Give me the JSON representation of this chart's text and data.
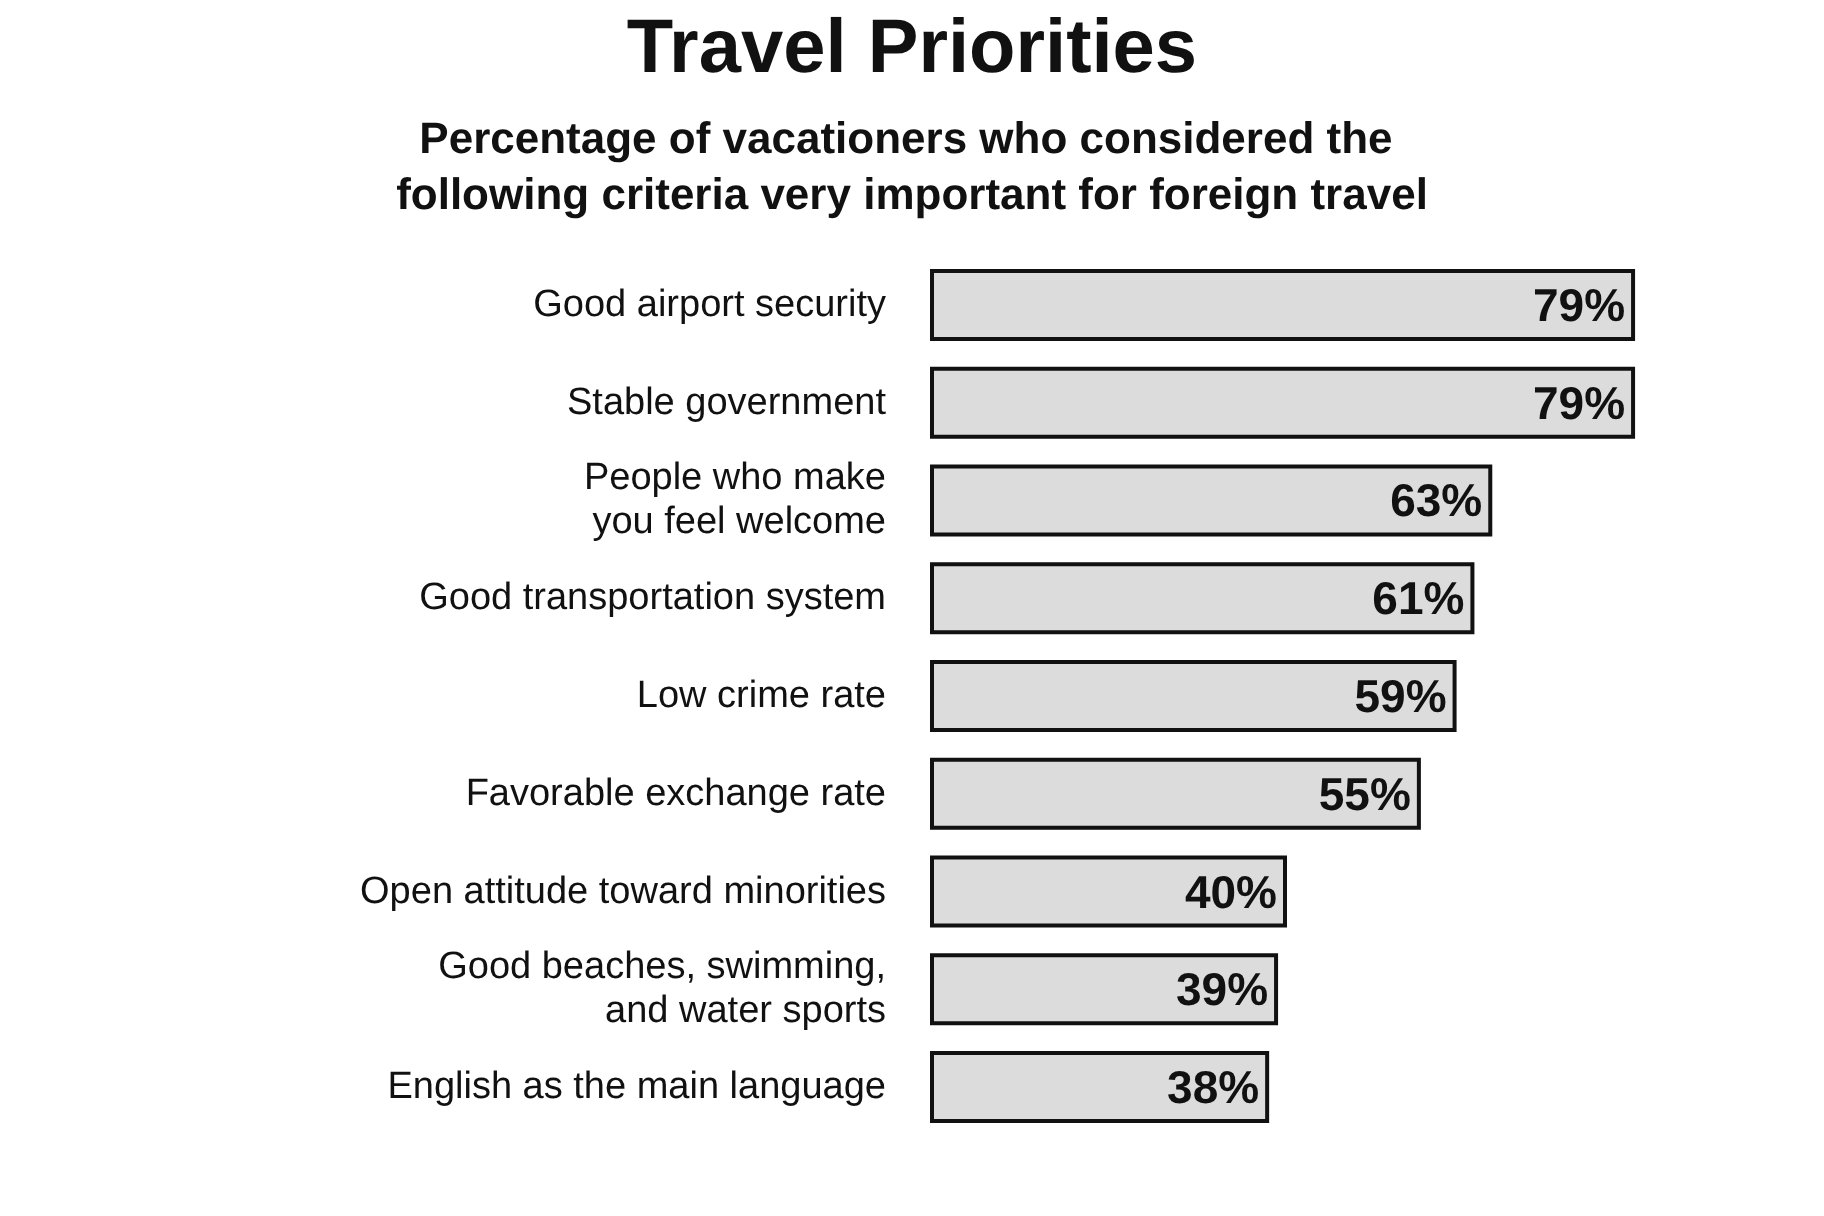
{
  "chart_data": {
    "type": "bar",
    "orientation": "horizontal",
    "title": "Travel Priorities",
    "subtitle": "Percentage of vacationers who considered the following criteria very important for foreign travel",
    "categories": [
      "Good airport security",
      "Stable government",
      "People who make\nyou feel welcome",
      "Good transportation system",
      "Low crime rate",
      "Favorable exchange rate",
      "Open attitude toward minorities",
      "Good beaches, swimming,\nand water sports",
      "English as the main language"
    ],
    "values": [
      79,
      79,
      63,
      61,
      59,
      55,
      40,
      39,
      38
    ],
    "value_labels": [
      "79%",
      "79%",
      "63%",
      "61%",
      "59%",
      "55%",
      "40%",
      "39%",
      "38%"
    ],
    "color": "#dcdcdc",
    "tick_labels": "y"
  }
}
